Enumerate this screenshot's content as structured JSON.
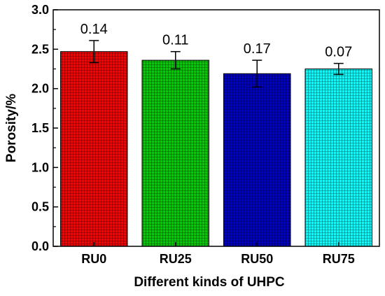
{
  "chart_data": {
    "type": "bar",
    "title": "",
    "xlabel": "Different kinds  of UHPC",
    "ylabel": "Porosity/%",
    "categories": [
      "RU0",
      "RU25",
      "RU50",
      "RU75"
    ],
    "values": [
      2.47,
      2.36,
      2.19,
      2.25
    ],
    "errors": [
      0.14,
      0.11,
      0.17,
      0.07
    ],
    "data_labels": [
      "0.14",
      "0.11",
      "0.17",
      "0.07"
    ],
    "ylim": [
      0.0,
      3.0
    ],
    "yticks": [
      "0.0",
      "0.5",
      "1.0",
      "1.5",
      "2.0",
      "2.5",
      "3.0"
    ],
    "grid": false,
    "legend": "none",
    "bar_colors": [
      "#ff0000",
      "#00cc00",
      "#0000cc",
      "#00ffff"
    ],
    "bar_hatch": "grid"
  }
}
